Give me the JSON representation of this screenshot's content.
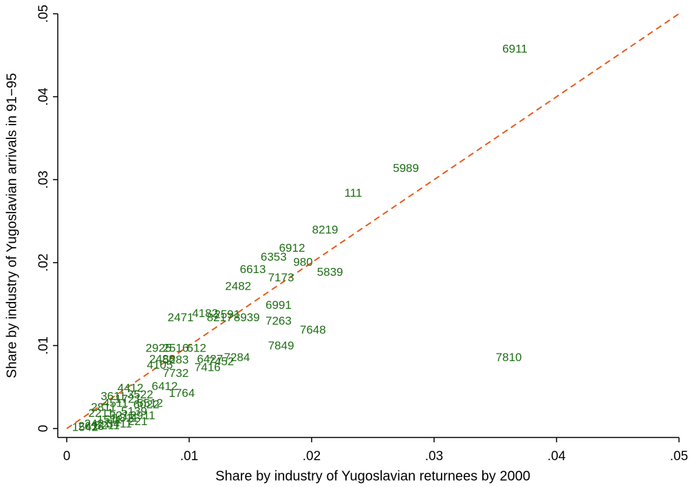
{
  "chart_data": {
    "type": "scatter",
    "x_label": "Share by industry of Yugoslavian returnees by 2000",
    "y_label": "Share by industry of Yugoslavian arrivals in 91−95",
    "labels": [
      "6911",
      "5989",
      "111",
      "8219",
      "6912",
      "6353",
      "980",
      "5839",
      "6613",
      "7173",
      "2482",
      "6991",
      "7263",
      "7648",
      "7849",
      "7810",
      "2471",
      "4182",
      "2591",
      "8217",
      "8939",
      "2925",
      "2516",
      "612",
      "2488",
      "5283",
      "6427",
      "7284",
      "7452",
      "7416",
      "7732",
      "4105",
      "1764",
      "6412",
      "221",
      "2421",
      "1511",
      "3211",
      "5139",
      "2811",
      "4511",
      "1721",
      "3522",
      "2613",
      "5211",
      "3411",
      "6022",
      "1542",
      "2211",
      "3611",
      "4412",
      "2911",
      "1811",
      "5512"
    ],
    "x": [
      0.0366,
      0.0277,
      0.0234,
      0.0211,
      0.0184,
      0.0169,
      0.0193,
      0.0215,
      0.0152,
      0.0175,
      0.014,
      0.0173,
      0.0173,
      0.0201,
      0.0175,
      0.0361,
      0.0093,
      0.0113,
      0.0131,
      0.0125,
      0.0147,
      0.0075,
      0.0089,
      0.0106,
      0.0078,
      0.0089,
      0.0117,
      0.0139,
      0.0126,
      0.0115,
      0.0089,
      0.0076,
      0.0094,
      0.008,
      0.0058,
      0.0025,
      0.0035,
      0.0045,
      0.0055,
      0.003,
      0.004,
      0.005,
      0.006,
      0.002,
      0.0033,
      0.0043,
      0.0065,
      0.0015,
      0.0028,
      0.0038,
      0.0052,
      0.0062,
      0.0048,
      0.0068
    ],
    "values": [
      0.0457,
      0.0313,
      0.0283,
      0.0239,
      0.0217,
      0.0206,
      0.02,
      0.0188,
      0.0191,
      0.0181,
      0.0171,
      0.0148,
      0.0129,
      0.0118,
      0.0099,
      0.0085,
      0.0133,
      0.0138,
      0.0137,
      0.0133,
      0.0133,
      0.0096,
      0.0096,
      0.0096,
      0.0083,
      0.0082,
      0.0083,
      0.0085,
      0.008,
      0.0073,
      0.0066,
      0.0076,
      0.0042,
      0.005,
      0.0008,
      0.0005,
      0.001,
      0.0015,
      0.002,
      0.0025,
      0.003,
      0.0035,
      0.004,
      0.0002,
      0.0003,
      0.0005,
      0.0028,
      0.0001,
      0.0018,
      0.0038,
      0.0048,
      0.0015,
      0.0012,
      0.003
    ],
    "color": "#1e6e14",
    "fit_line": {
      "x": [
        0,
        0.05
      ],
      "y": [
        0,
        0.05
      ],
      "color": "#e8581a"
    },
    "xlim": [
      0,
      0.05
    ],
    "ylim": [
      0,
      0.05
    ],
    "xticks": [
      0,
      {
        "value": 0.01,
        "label": ".01"
      },
      {
        "value": 0.02,
        "label": ".02"
      },
      {
        "value": 0.03,
        "label": ".03"
      },
      {
        "value": 0.04,
        "label": ".04"
      },
      {
        "value": 0.05,
        "label": ".05"
      }
    ],
    "yticks": [
      0,
      {
        "value": 0.01,
        "label": ".01"
      },
      {
        "value": 0.02,
        "label": ".02"
      },
      {
        "value": 0.03,
        "label": ".03"
      },
      {
        "value": 0.04,
        "label": ".04"
      },
      {
        "value": 0.05,
        "label": ".05"
      }
    ]
  }
}
